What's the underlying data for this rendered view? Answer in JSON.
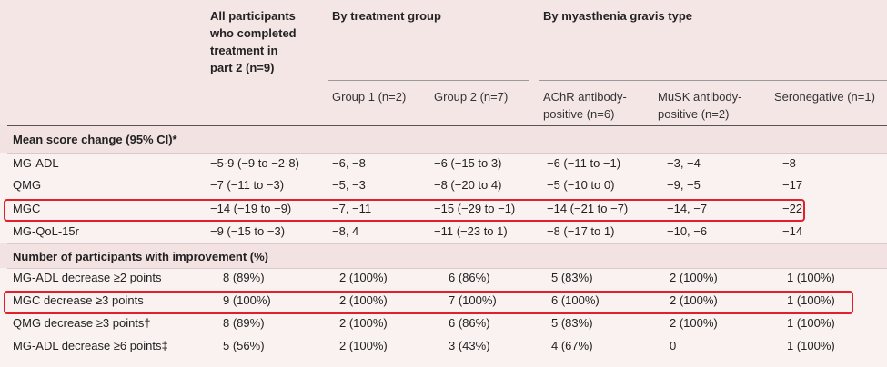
{
  "header": {
    "all_participants": [
      "All participants",
      "who completed",
      "treatment in",
      "part 2 (n=9)"
    ],
    "by_treatment_group": "By treatment group",
    "by_mg_type": "By myasthenia gravis type",
    "group1": "Group 1 (n=2)",
    "group2": "Group 2 (n=7)",
    "achr": [
      "AChR antibody-",
      "positive (n=6)"
    ],
    "musk": [
      "MuSK antibody-",
      "positive (n=2)"
    ],
    "seroneg": "Seronegative (n=1)"
  },
  "sections": {
    "mean_change": "Mean score change (95% CI)*",
    "improvement": "Number of participants with improvement (%)"
  },
  "rows": [
    {
      "label": "MG-ADL",
      "all": "−5·9 (−9 to −2·8)",
      "g1": "−6, −8",
      "g2": "−6 (−15 to 3)",
      "achr": "−6 (−11 to −1)",
      "musk": "−3, −4",
      "sero": "−8"
    },
    {
      "label": "QMG",
      "all": "−7 (−11 to −3)",
      "g1": "−5, −3",
      "g2": "−8 (−20 to 4)",
      "achr": "−5 (−10 to 0)",
      "musk": "−9, −5",
      "sero": "−17"
    },
    {
      "label": "MGC",
      "all": "−14 (−19 to −9)",
      "g1": "−7, −11",
      "g2": "−15 (−29 to −1)",
      "achr": "−14 (−21 to −7)",
      "musk": "−14, −7",
      "sero": "−22"
    },
    {
      "label": "MG-QoL-15r",
      "all": "−9 (−15 to −3)",
      "g1": "−8, 4",
      "g2": "−11 (−23 to 1)",
      "achr": "−8 (−17 to 1)",
      "musk": "−10, −6",
      "sero": "−14"
    },
    {
      "label": "MG-ADL decrease ≥2 points",
      "all": "8 (89%)",
      "g1": "2 (100%)",
      "g2": "6 (86%)",
      "achr": "5 (83%)",
      "musk": "2 (100%)",
      "sero": "1 (100%)"
    },
    {
      "label": "MGC decrease ≥3 points",
      "all": "9 (100%)",
      "g1": "2 (100%)",
      "g2": "7 (100%)",
      "achr": "6 (100%)",
      "musk": "2 (100%)",
      "sero": "1 (100%)"
    },
    {
      "label": "QMG decrease ≥3 points†",
      "all": "8 (89%)",
      "g1": "2 (100%)",
      "g2": "6 (86%)",
      "achr": "5 (83%)",
      "musk": "2 (100%)",
      "sero": "1 (100%)"
    },
    {
      "label": "MG-ADL decrease ≥6 points‡",
      "all": "5 (56%)",
      "g1": "2 (100%)",
      "g2": "3 (43%)",
      "achr": "4 (67%)",
      "musk": "0",
      "sero": "1 (100%)"
    }
  ],
  "colors": {
    "background": "#f5e6e6",
    "highlight_box": "#e0202a"
  }
}
